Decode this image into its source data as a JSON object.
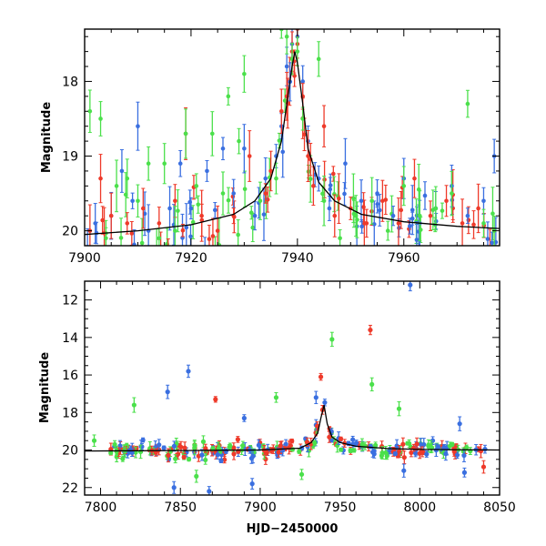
{
  "chart_data": [
    {
      "type": "scatter",
      "title": "",
      "xlabel": "",
      "ylabel": "Magnitude",
      "xlim": [
        7900,
        7978
      ],
      "ylim": [
        20.2,
        17.3
      ],
      "y_inverted": true,
      "xticks": [
        7900,
        7920,
        7940,
        7960
      ],
      "yticks": [
        18,
        19,
        20
      ],
      "grid": false,
      "error_bars": true,
      "series_colors": [
        "#3a6fe0",
        "#ee3a2a",
        "#4be04b"
      ],
      "series": [
        {
          "color": "#3a6fe0",
          "points": [
            [
              7902,
              19.9
            ],
            [
              7905,
              19.8
            ],
            [
              7907,
              19.2
            ],
            [
              7909,
              19.6
            ],
            [
              7910,
              18.6
            ],
            [
              7912,
              20.0
            ],
            [
              7916,
              19.7
            ],
            [
              7918,
              19.1
            ],
            [
              7920,
              19.7
            ],
            [
              7923,
              19.2
            ],
            [
              7926,
              18.9
            ],
            [
              7928,
              19.5
            ],
            [
              7930,
              18.9
            ],
            [
              7932,
              19.8
            ],
            [
              7934,
              19.3
            ],
            [
              7936,
              19.0
            ],
            [
              7937,
              18.6
            ],
            [
              7938,
              17.8
            ],
            [
              7939,
              17.5
            ],
            [
              7940,
              17.4
            ],
            [
              7941,
              18.0
            ],
            [
              7942,
              18.8
            ],
            [
              7944,
              19.3
            ],
            [
              7946,
              19.7
            ],
            [
              7949,
              19.1
            ],
            [
              7952,
              19.6
            ],
            [
              7955,
              19.5
            ],
            [
              7958,
              19.8
            ],
            [
              7960,
              19.3
            ],
            [
              7963,
              19.9
            ],
            [
              7966,
              19.7
            ],
            [
              7969,
              19.4
            ],
            [
              7972,
              19.8
            ],
            [
              7975,
              19.6
            ],
            [
              7977,
              19.0
            ]
          ]
        },
        {
          "color": "#ee3a2a",
          "points": [
            [
              7901,
              20.0
            ],
            [
              7903,
              19.3
            ],
            [
              7905,
              19.8
            ],
            [
              7908,
              19.9
            ],
            [
              7911,
              19.7
            ],
            [
              7914,
              19.9
            ],
            [
              7917,
              19.6
            ],
            [
              7919,
              18.7
            ],
            [
              7922,
              19.8
            ],
            [
              7925,
              20.0
            ],
            [
              7928,
              19.8
            ],
            [
              7931,
              19.0
            ],
            [
              7934,
              19.5
            ],
            [
              7935,
              19.2
            ],
            [
              7937,
              18.4
            ],
            [
              7938,
              18.2
            ],
            [
              7939,
              17.6
            ],
            [
              7940,
              17.5
            ],
            [
              7941,
              18.2
            ],
            [
              7942,
              19.0
            ],
            [
              7943,
              19.4
            ],
            [
              7945,
              18.6
            ],
            [
              7947,
              19.8
            ],
            [
              7950,
              19.7
            ],
            [
              7953,
              19.9
            ],
            [
              7956,
              19.6
            ],
            [
              7959,
              19.9
            ],
            [
              7962,
              19.3
            ],
            [
              7965,
              19.8
            ],
            [
              7968,
              19.6
            ],
            [
              7971,
              19.9
            ],
            [
              7974,
              19.7
            ]
          ]
        },
        {
          "color": "#4be04b",
          "points": [
            [
              7901,
              18.4
            ],
            [
              7903,
              18.5
            ],
            [
              7904,
              20.1
            ],
            [
              7906,
              19.4
            ],
            [
              7908,
              19.3
            ],
            [
              7910,
              19.6
            ],
            [
              7912,
              19.1
            ],
            [
              7914,
              20.1
            ],
            [
              7915,
              19.1
            ],
            [
              7917,
              20.0
            ],
            [
              7919,
              18.7
            ],
            [
              7921,
              19.4
            ],
            [
              7924,
              18.7
            ],
            [
              7926,
              19.5
            ],
            [
              7927,
              18.2
            ],
            [
              7929,
              18.8
            ],
            [
              7930,
              17.9
            ],
            [
              7933,
              19.6
            ],
            [
              7936,
              19.3
            ],
            [
              7937,
              17.3
            ],
            [
              7938,
              17.4
            ],
            [
              7939,
              17.7
            ],
            [
              7940,
              17.6
            ],
            [
              7941,
              18.5
            ],
            [
              7944,
              17.7
            ],
            [
              7945,
              19.6
            ],
            [
              7948,
              20.1
            ],
            [
              7951,
              19.8
            ],
            [
              7954,
              19.6
            ],
            [
              7957,
              20.0
            ],
            [
              7960,
              19.4
            ],
            [
              7963,
              19.8
            ],
            [
              7966,
              19.7
            ],
            [
              7969,
              19.5
            ],
            [
              7972,
              18.3
            ],
            [
              7975,
              19.9
            ],
            [
              7977,
              20.0
            ]
          ]
        }
      ],
      "model_curve": [
        [
          7900,
          20.05
        ],
        [
          7910,
          20.0
        ],
        [
          7920,
          19.92
        ],
        [
          7928,
          19.78
        ],
        [
          7932,
          19.6
        ],
        [
          7935,
          19.3
        ],
        [
          7937,
          18.8
        ],
        [
          7938,
          18.3
        ],
        [
          7939,
          17.8
        ],
        [
          7939.5,
          17.6
        ],
        [
          7940,
          17.75
        ],
        [
          7941,
          18.3
        ],
        [
          7942,
          18.9
        ],
        [
          7944,
          19.35
        ],
        [
          7947,
          19.6
        ],
        [
          7952,
          19.78
        ],
        [
          7960,
          19.88
        ],
        [
          7970,
          19.94
        ],
        [
          7978,
          19.97
        ]
      ]
    },
    {
      "type": "scatter",
      "title": "",
      "xlabel": "HJD−2450000",
      "ylabel": "Magnitude",
      "xlim": [
        7790,
        8050
      ],
      "ylim": [
        22.4,
        11.0
      ],
      "y_inverted": true,
      "xticks": [
        7800,
        7850,
        7900,
        7950,
        8000,
        8050
      ],
      "yticks": [
        12,
        14,
        16,
        18,
        20,
        22
      ],
      "grid": false,
      "error_bars": true,
      "series_colors": [
        "#3a6fe0",
        "#ee3a2a",
        "#4be04b"
      ],
      "outliers": [
        {
          "x": 7994,
          "y": 11.2,
          "color": "#3a6fe0"
        },
        {
          "x": 7969,
          "y": 13.6,
          "color": "#ee3a2a"
        },
        {
          "x": 7945,
          "y": 14.1,
          "color": "#4be04b"
        },
        {
          "x": 7855,
          "y": 15.8,
          "color": "#3a6fe0"
        },
        {
          "x": 7938,
          "y": 16.1,
          "color": "#ee3a2a"
        },
        {
          "x": 7970,
          "y": 16.5,
          "color": "#4be04b"
        },
        {
          "x": 7842,
          "y": 16.9,
          "color": "#3a6fe0"
        },
        {
          "x": 7821,
          "y": 17.6,
          "color": "#4be04b"
        },
        {
          "x": 7872,
          "y": 17.3,
          "color": "#ee3a2a"
        },
        {
          "x": 7890,
          "y": 18.3,
          "color": "#3a6fe0"
        },
        {
          "x": 7910,
          "y": 17.2,
          "color": "#4be04b"
        },
        {
          "x": 7935,
          "y": 17.2,
          "color": "#3a6fe0"
        },
        {
          "x": 7796,
          "y": 19.5,
          "color": "#4be04b"
        },
        {
          "x": 7987,
          "y": 17.8,
          "color": "#4be04b"
        },
        {
          "x": 8025,
          "y": 18.6,
          "color": "#3a6fe0"
        },
        {
          "x": 7846,
          "y": 22.0,
          "color": "#3a6fe0"
        },
        {
          "x": 7868,
          "y": 22.2,
          "color": "#3a6fe0"
        },
        {
          "x": 7860,
          "y": 21.4,
          "color": "#4be04b"
        },
        {
          "x": 7895,
          "y": 21.8,
          "color": "#3a6fe0"
        },
        {
          "x": 7926,
          "y": 21.3,
          "color": "#4be04b"
        },
        {
          "x": 7990,
          "y": 21.1,
          "color": "#3a6fe0"
        },
        {
          "x": 8028,
          "y": 21.2,
          "color": "#3a6fe0"
        },
        {
          "x": 8040,
          "y": 20.9,
          "color": "#ee3a2a"
        }
      ],
      "baseline_magnitude": 20.0,
      "coverage": {
        "start": 7806,
        "end": 8042
      },
      "peak": {
        "x": 7940,
        "y": 17.5
      },
      "model_curve": [
        [
          7790,
          20.05
        ],
        [
          7850,
          20.03
        ],
        [
          7900,
          20.0
        ],
        [
          7925,
          19.9
        ],
        [
          7932,
          19.6
        ],
        [
          7936,
          19.1
        ],
        [
          7938,
          18.3
        ],
        [
          7940,
          17.6
        ],
        [
          7942,
          18.6
        ],
        [
          7945,
          19.3
        ],
        [
          7950,
          19.6
        ],
        [
          7960,
          19.8
        ],
        [
          7980,
          19.92
        ],
        [
          8000,
          19.97
        ],
        [
          8050,
          20.0
        ]
      ]
    }
  ]
}
